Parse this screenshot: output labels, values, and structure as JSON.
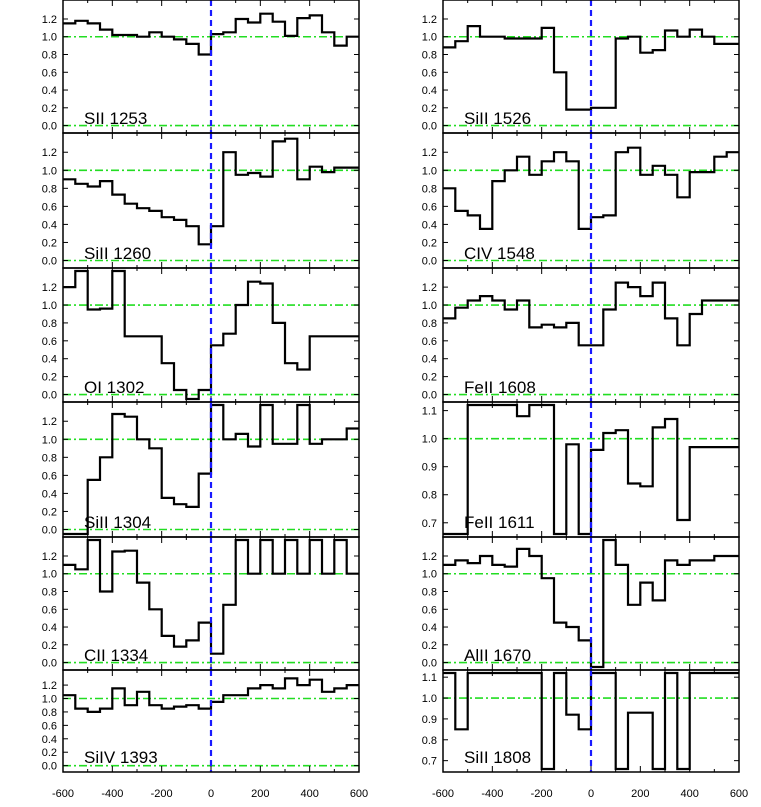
{
  "figure": {
    "x_tick_labels": [
      "-600",
      "-400",
      "-200",
      "0",
      "200",
      "400",
      "600"
    ]
  },
  "chart_data": [
    {
      "type": "line",
      "label": "SII 1253",
      "ylim": [
        -0.05,
        1.38
      ],
      "y_ticks": [
        "0.0",
        "0.2",
        "0.4",
        "0.6",
        "0.8",
        "1.0",
        "1.2"
      ],
      "x": [
        -600,
        -550,
        -500,
        -450,
        -400,
        -350,
        -300,
        -250,
        -200,
        -150,
        -100,
        -50,
        0,
        50,
        100,
        150,
        200,
        250,
        300,
        350,
        400,
        450,
        500,
        550
      ],
      "values": [
        1.15,
        1.18,
        1.15,
        1.08,
        1.02,
        1.02,
        1.0,
        1.05,
        1.0,
        0.97,
        0.92,
        0.8,
        1.03,
        1.05,
        1.2,
        1.16,
        1.26,
        1.17,
        1.01,
        1.21,
        1.24,
        1.05,
        0.9,
        1.0
      ]
    },
    {
      "type": "line",
      "label": "SiII 1260",
      "ylim": [
        -0.05,
        1.38
      ],
      "y_ticks": [
        "0.0",
        "0.2",
        "0.4",
        "0.6",
        "0.8",
        "1.0",
        "1.2"
      ],
      "x": [
        -600,
        -550,
        -500,
        -450,
        -400,
        -350,
        -300,
        -250,
        -200,
        -150,
        -100,
        -50,
        0,
        50,
        100,
        150,
        200,
        250,
        300,
        350,
        400,
        450,
        500,
        550
      ],
      "values": [
        0.9,
        0.85,
        0.82,
        0.88,
        0.73,
        0.63,
        0.58,
        0.55,
        0.48,
        0.45,
        0.38,
        0.18,
        0.38,
        1.2,
        0.95,
        0.97,
        0.93,
        1.32,
        1.35,
        0.9,
        1.04,
        0.98,
        1.03,
        1.03
      ]
    },
    {
      "type": "line",
      "label": "OI 1302",
      "ylim": [
        -0.05,
        1.38
      ],
      "y_ticks": [
        "0.0",
        "0.2",
        "0.4",
        "0.6",
        "0.8",
        "1.0",
        "1.2"
      ],
      "x": [
        -600,
        -550,
        -500,
        -450,
        -400,
        -350,
        -300,
        -250,
        -200,
        -150,
        -100,
        -50,
        0,
        50,
        100,
        150,
        200,
        250,
        300,
        350,
        400,
        450,
        500,
        550
      ],
      "values": [
        1.2,
        1.38,
        0.95,
        0.96,
        1.38,
        0.65,
        0.65,
        0.65,
        0.35,
        0.05,
        -0.05,
        0.05,
        0.55,
        0.68,
        1.0,
        1.26,
        1.24,
        0.8,
        0.35,
        0.28,
        0.65,
        0.65,
        0.65,
        0.65
      ]
    },
    {
      "type": "line",
      "label": "SiII 1304",
      "ylim": [
        -0.05,
        1.38
      ],
      "y_ticks": [
        "0.0",
        "0.2",
        "0.4",
        "0.6",
        "0.8",
        "1.0",
        "1.2"
      ],
      "x": [
        -600,
        -550,
        -500,
        -450,
        -400,
        -350,
        -300,
        -250,
        -200,
        -150,
        -100,
        -50,
        0,
        50,
        100,
        150,
        200,
        250,
        300,
        350,
        400,
        450,
        500,
        550
      ],
      "values": [
        -0.05,
        -0.05,
        0.55,
        0.8,
        1.28,
        1.25,
        1.0,
        0.9,
        0.35,
        0.28,
        0.25,
        0.62,
        1.38,
        1.0,
        1.06,
        0.92,
        1.38,
        0.95,
        0.95,
        1.38,
        0.95,
        1.0,
        1.0,
        1.12
      ]
    },
    {
      "type": "line",
      "label": "CII 1334",
      "ylim": [
        -0.05,
        1.38
      ],
      "y_ticks": [
        "0.0",
        "0.2",
        "0.4",
        "0.6",
        "0.8",
        "1.0",
        "1.2"
      ],
      "x": [
        -600,
        -550,
        -500,
        -450,
        -400,
        -350,
        -300,
        -250,
        -200,
        -150,
        -100,
        -50,
        0,
        50,
        100,
        150,
        200,
        250,
        300,
        350,
        400,
        450,
        500,
        550
      ],
      "values": [
        1.1,
        1.05,
        1.38,
        0.8,
        1.25,
        1.26,
        0.9,
        0.6,
        0.3,
        0.18,
        0.25,
        0.45,
        0.1,
        0.65,
        1.38,
        1.0,
        1.38,
        1.0,
        1.38,
        1.0,
        1.38,
        1.0,
        1.38,
        1.0
      ]
    },
    {
      "type": "line",
      "label": "SiIV 1393",
      "ylim": [
        -0.05,
        1.38
      ],
      "y_ticks": [
        "0.0",
        "0.2",
        "0.4",
        "0.6",
        "0.8",
        "1.0",
        "1.2"
      ],
      "x": [
        -600,
        -550,
        -500,
        -450,
        -400,
        -350,
        -300,
        -250,
        -200,
        -150,
        -100,
        -50,
        0,
        50,
        100,
        150,
        200,
        250,
        300,
        350,
        400,
        450,
        500,
        550
      ],
      "values": [
        1.05,
        0.85,
        0.8,
        0.85,
        1.15,
        0.9,
        1.1,
        0.9,
        0.85,
        0.88,
        0.9,
        0.85,
        0.95,
        1.05,
        1.05,
        1.15,
        1.2,
        1.15,
        1.3,
        1.2,
        1.28,
        1.1,
        1.15,
        1.2
      ]
    },
    {
      "type": "line",
      "label": "SiII 1526",
      "ylim": [
        -0.05,
        1.38
      ],
      "y_ticks": [
        "0.0",
        "0.2",
        "0.4",
        "0.6",
        "0.8",
        "1.0",
        "1.2"
      ],
      "x": [
        -600,
        -550,
        -500,
        -450,
        -400,
        -350,
        -300,
        -250,
        -200,
        -150,
        -100,
        -50,
        0,
        50,
        100,
        150,
        200,
        250,
        300,
        350,
        400,
        450,
        500,
        550
      ],
      "values": [
        0.88,
        0.95,
        1.12,
        1.0,
        1.0,
        0.98,
        0.98,
        0.98,
        1.1,
        0.6,
        0.18,
        0.18,
        0.2,
        0.2,
        0.98,
        1.0,
        0.82,
        0.85,
        1.07,
        1.0,
        1.08,
        1.0,
        0.92,
        0.92
      ]
    },
    {
      "type": "line",
      "label": "CIV 1548",
      "ylim": [
        -0.05,
        1.38
      ],
      "y_ticks": [
        "0.0",
        "0.2",
        "0.4",
        "0.6",
        "0.8",
        "1.0",
        "1.2"
      ],
      "x": [
        -600,
        -550,
        -500,
        -450,
        -400,
        -350,
        -300,
        -250,
        -200,
        -150,
        -100,
        -50,
        0,
        50,
        100,
        150,
        200,
        250,
        300,
        350,
        400,
        450,
        500,
        550
      ],
      "values": [
        0.8,
        0.55,
        0.5,
        0.35,
        0.88,
        1.0,
        1.15,
        0.95,
        1.1,
        1.2,
        1.1,
        0.35,
        0.48,
        0.5,
        1.2,
        1.25,
        0.95,
        1.05,
        0.95,
        0.7,
        0.98,
        0.98,
        1.15,
        1.2
      ]
    },
    {
      "type": "line",
      "label": "FeII 1608",
      "ylim": [
        -0.05,
        1.38
      ],
      "y_ticks": [
        "0.0",
        "0.2",
        "0.4",
        "0.6",
        "0.8",
        "1.0",
        "1.2"
      ],
      "x": [
        -600,
        -550,
        -500,
        -450,
        -400,
        -350,
        -300,
        -250,
        -200,
        -150,
        -100,
        -50,
        0,
        50,
        100,
        150,
        200,
        250,
        300,
        350,
        400,
        450,
        500,
        550
      ],
      "values": [
        0.85,
        0.97,
        1.05,
        1.1,
        1.05,
        0.95,
        1.05,
        0.75,
        0.78,
        0.75,
        0.8,
        0.55,
        0.55,
        0.95,
        1.25,
        1.2,
        1.1,
        1.25,
        0.85,
        0.55,
        0.9,
        1.05,
        1.05,
        1.05
      ]
    },
    {
      "type": "line",
      "label": "FeII 1611",
      "ylim": [
        0.66,
        1.12
      ],
      "y_ticks": [
        "0.7",
        "0.8",
        "0.9",
        "1.0",
        "1.1"
      ],
      "x": [
        -600,
        -550,
        -500,
        -450,
        -400,
        -350,
        -300,
        -250,
        -200,
        -150,
        -100,
        -50,
        0,
        50,
        100,
        150,
        200,
        250,
        300,
        350,
        400,
        450,
        500,
        550
      ],
      "values": [
        0.66,
        0.66,
        1.12,
        1.12,
        1.12,
        1.12,
        1.08,
        1.12,
        1.12,
        0.66,
        0.98,
        0.66,
        0.96,
        1.02,
        1.03,
        0.84,
        0.83,
        1.04,
        1.07,
        0.71,
        0.97,
        0.97,
        0.97,
        0.97
      ]
    },
    {
      "type": "line",
      "label": "AlII 1670",
      "ylim": [
        -0.05,
        1.38
      ],
      "y_ticks": [
        "0.0",
        "0.2",
        "0.4",
        "0.6",
        "0.8",
        "1.0",
        "1.2"
      ],
      "x": [
        -600,
        -550,
        -500,
        -450,
        -400,
        -350,
        -300,
        -250,
        -200,
        -150,
        -100,
        -50,
        0,
        50,
        100,
        150,
        200,
        250,
        300,
        350,
        400,
        450,
        500,
        550
      ],
      "values": [
        1.1,
        1.15,
        1.12,
        1.2,
        1.1,
        1.08,
        1.28,
        1.2,
        0.95,
        0.45,
        0.4,
        0.25,
        -0.05,
        1.38,
        1.1,
        0.65,
        0.9,
        0.7,
        1.15,
        1.1,
        1.15,
        1.15,
        1.2,
        1.2
      ]
    },
    {
      "type": "line",
      "label": "SiII 1808",
      "ylim": [
        0.66,
        1.12
      ],
      "y_ticks": [
        "0.7",
        "0.8",
        "0.9",
        "1.0",
        "1.1"
      ],
      "x": [
        -600,
        -550,
        -500,
        -450,
        -400,
        -350,
        -300,
        -250,
        -200,
        -150,
        -100,
        -50,
        0,
        50,
        100,
        150,
        200,
        250,
        300,
        350,
        400,
        450,
        500,
        550
      ],
      "values": [
        1.12,
        0.85,
        1.12,
        1.12,
        1.12,
        1.12,
        1.12,
        1.12,
        0.66,
        1.12,
        0.92,
        0.85,
        1.12,
        1.12,
        0.66,
        0.93,
        0.93,
        0.66,
        1.12,
        0.66,
        1.12,
        1.12,
        1.12,
        1.12
      ]
    }
  ]
}
